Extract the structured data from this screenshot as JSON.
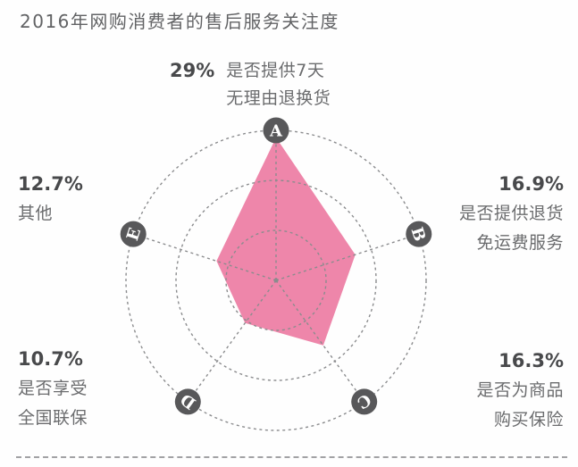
{
  "title": "2016年网购消费者的售后服务关注度",
  "chart_data": {
    "type": "radar",
    "title": "2016年网购消费者的售后服务关注度",
    "max_value": 29,
    "rings": 3,
    "grid_style": "dashed",
    "axes": [
      {
        "id": "A",
        "value": 29,
        "value_label": "29%",
        "label_lines": [
          "是否提供7天",
          "无理由退换货"
        ],
        "position": "top"
      },
      {
        "id": "B",
        "value": 16.9,
        "value_label": "16.9%",
        "label_lines": [
          "是否提供退货",
          "免运费服务"
        ],
        "position": "right"
      },
      {
        "id": "C",
        "value": 16.3,
        "value_label": "16.3%",
        "label_lines": [
          "是否为商品",
          "购买保险"
        ],
        "position": "bottom-right"
      },
      {
        "id": "D",
        "value": 10.7,
        "value_label": "10.7%",
        "label_lines": [
          "是否享受",
          "全国联保"
        ],
        "position": "bottom-left"
      },
      {
        "id": "E",
        "value": 12.7,
        "value_label": "12.7%",
        "label_lines": [
          "其他"
        ],
        "position": "left"
      }
    ],
    "colors": {
      "fill": "#ee86aa",
      "node": "#58585a",
      "node_letter": "#ffffff",
      "grid": "#8b8c8e",
      "value_text": "#48494b",
      "label_text": "#6b6c6e",
      "title_text": "#626365",
      "divider": "#a2a2a4"
    }
  }
}
